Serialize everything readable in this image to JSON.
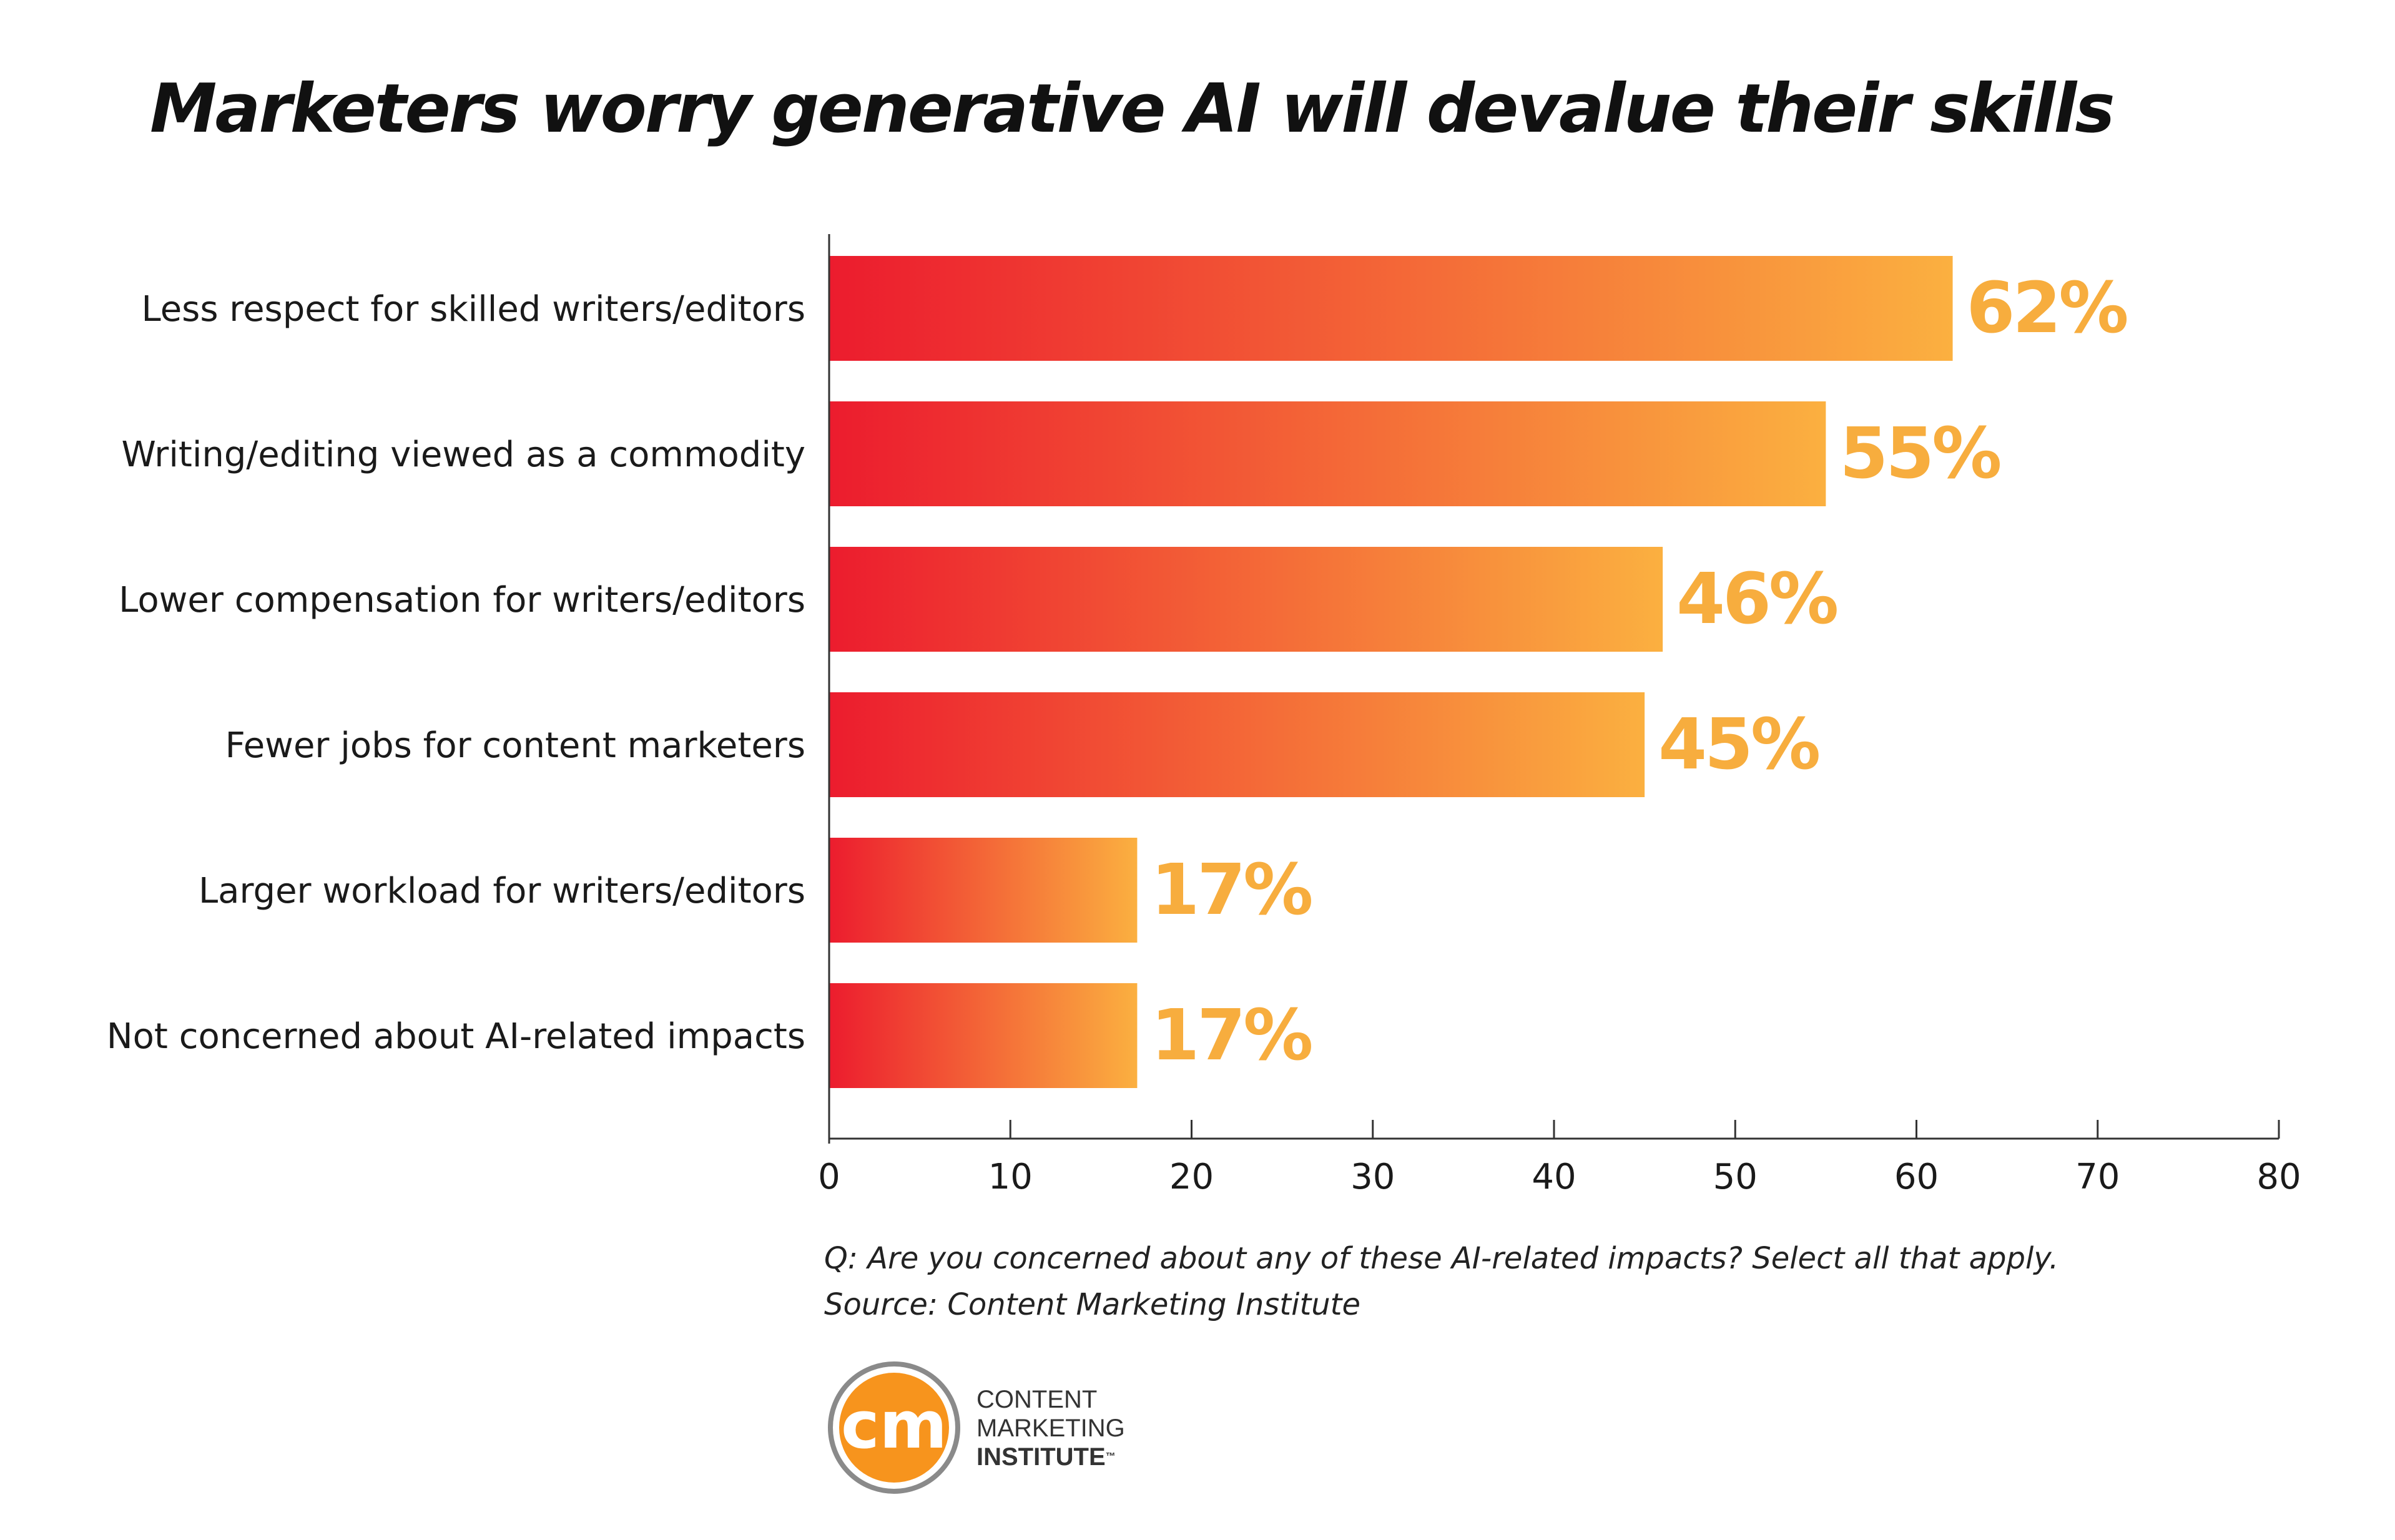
{
  "title": "Marketers worry generative AI will devalue their skills",
  "footnote": {
    "question": "Q: Are you concerned about any of these AI-related impacts? Select all that apply.",
    "source": "Source: Content Marketing Institute"
  },
  "logo": {
    "monogram": "cm",
    "line1": "CONTENT",
    "line2": "MARKETING",
    "line3": "INSTITUTE",
    "trademark": "™"
  },
  "chart_data": {
    "type": "bar",
    "orientation": "horizontal",
    "categories": [
      "Less respect for skilled writers/editors",
      "Writing/editing viewed as a commodity",
      "Lower compensation for writers/editors",
      "Fewer jobs for content marketers",
      "Larger workload for writers/editors",
      "Not concerned about AI-related impacts"
    ],
    "values": [
      62,
      55,
      46,
      45,
      17,
      17
    ],
    "data_labels": [
      "62%",
      "55%",
      "46%",
      "45%",
      "17%",
      "17%"
    ],
    "xlim": [
      0,
      80
    ],
    "x_ticks": [
      "0",
      "10",
      "20",
      "30",
      "40",
      "50",
      "60",
      "70",
      "80"
    ],
    "grid": false,
    "legend": "none",
    "colors": {
      "bar_gradient_start": "#ec1c2e",
      "bar_gradient_end": "#fbb040",
      "value_label": "#f7ad3e",
      "axis": "#333333",
      "logo_orange": "#f7941d"
    }
  }
}
